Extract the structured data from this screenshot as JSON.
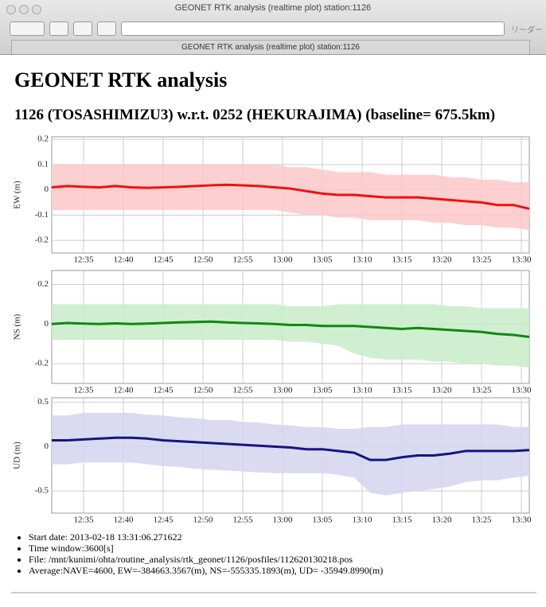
{
  "window": {
    "title": "GEONET RTK analysis (realtime plot) station:1126",
    "tab": "GEONET RTK analysis (realtime plot) station:1126",
    "reader": "リーダー"
  },
  "header": {
    "title": "GEONET RTK analysis",
    "subtitle": "1126 (TOSASHIMIZU3) w.r.t. 0252 (HEKURAJIMA) (baseline= 675.5km)"
  },
  "chart_data": [
    {
      "type": "line",
      "ylabel": "EW (m)",
      "color": "#ee1111",
      "band_color": "#fbc8c8",
      "grid": true,
      "x": [
        "12:31",
        "12:33",
        "12:35",
        "12:37",
        "12:39",
        "12:41",
        "12:43",
        "12:45",
        "12:47",
        "12:49",
        "12:51",
        "12:53",
        "12:55",
        "12:57",
        "12:59",
        "13:01",
        "13:03",
        "13:05",
        "13:07",
        "13:09",
        "13:11",
        "13:13",
        "13:15",
        "13:17",
        "13:19",
        "13:21",
        "13:23",
        "13:25",
        "13:27",
        "13:29",
        "13:31"
      ],
      "values": [
        0.01,
        0.015,
        0.012,
        0.01,
        0.015,
        0.01,
        0.008,
        0.01,
        0.012,
        0.015,
        0.018,
        0.02,
        0.018,
        0.015,
        0.01,
        0.005,
        -0.005,
        -0.015,
        -0.02,
        -0.02,
        -0.025,
        -0.03,
        -0.03,
        -0.03,
        -0.035,
        -0.04,
        -0.045,
        -0.05,
        -0.06,
        -0.06,
        -0.075
      ],
      "upper": [
        0.1,
        0.1,
        0.1,
        0.1,
        0.1,
        0.1,
        0.1,
        0.1,
        0.1,
        0.1,
        0.1,
        0.1,
        0.1,
        0.1,
        0.1,
        0.09,
        0.09,
        0.08,
        0.07,
        0.07,
        0.07,
        0.06,
        0.06,
        0.06,
        0.06,
        0.05,
        0.05,
        0.04,
        0.04,
        0.03,
        0.03
      ],
      "lower": [
        -0.08,
        -0.08,
        -0.08,
        -0.08,
        -0.08,
        -0.08,
        -0.08,
        -0.08,
        -0.08,
        -0.08,
        -0.08,
        -0.08,
        -0.08,
        -0.08,
        -0.08,
        -0.09,
        -0.1,
        -0.1,
        -0.11,
        -0.11,
        -0.12,
        -0.12,
        -0.12,
        -0.12,
        -0.13,
        -0.13,
        -0.14,
        -0.14,
        -0.15,
        -0.15,
        -0.16
      ],
      "xlim": [
        "12:31",
        "13:31"
      ],
      "xticks": [
        "12:35",
        "12:40",
        "12:45",
        "12:50",
        "12:55",
        "13:00",
        "13:05",
        "13:10",
        "13:15",
        "13:20",
        "13:25",
        "13:30"
      ],
      "ylim": [
        -0.25,
        0.21
      ],
      "yticks": [
        -0.2,
        -0.1,
        0,
        0.1,
        0.2
      ]
    },
    {
      "type": "line",
      "ylabel": "NS (m)",
      "color": "#118811",
      "band_color": "#c8ecc8",
      "grid": true,
      "x": [
        "12:31",
        "12:33",
        "12:35",
        "12:37",
        "12:39",
        "12:41",
        "12:43",
        "12:45",
        "12:47",
        "12:49",
        "12:51",
        "12:53",
        "12:55",
        "12:57",
        "12:59",
        "13:01",
        "13:03",
        "13:05",
        "13:07",
        "13:09",
        "13:11",
        "13:13",
        "13:15",
        "13:17",
        "13:19",
        "13:21",
        "13:23",
        "13:25",
        "13:27",
        "13:29",
        "13:31"
      ],
      "values": [
        0,
        0.005,
        0.002,
        0,
        0.003,
        0,
        0.002,
        0.005,
        0.008,
        0.01,
        0.012,
        0.008,
        0.005,
        0.003,
        0,
        -0.005,
        -0.005,
        -0.01,
        -0.01,
        -0.01,
        -0.015,
        -0.02,
        -0.025,
        -0.02,
        -0.025,
        -0.03,
        -0.035,
        -0.04,
        -0.05,
        -0.055,
        -0.065
      ],
      "upper": [
        0.1,
        0.1,
        0.1,
        0.1,
        0.1,
        0.1,
        0.1,
        0.1,
        0.1,
        0.1,
        0.1,
        0.1,
        0.1,
        0.1,
        0.1,
        0.09,
        0.09,
        0.09,
        0.1,
        0.1,
        0.1,
        0.1,
        0.1,
        0.1,
        0.1,
        0.09,
        0.09,
        0.08,
        0.08,
        0.08,
        0.08
      ],
      "lower": [
        -0.08,
        -0.08,
        -0.08,
        -0.08,
        -0.08,
        -0.08,
        -0.08,
        -0.08,
        -0.08,
        -0.08,
        -0.08,
        -0.08,
        -0.08,
        -0.08,
        -0.08,
        -0.09,
        -0.09,
        -0.1,
        -0.11,
        -0.15,
        -0.17,
        -0.18,
        -0.18,
        -0.18,
        -0.19,
        -0.19,
        -0.2,
        -0.2,
        -0.21,
        -0.21,
        -0.22
      ],
      "xlim": [
        "12:31",
        "13:31"
      ],
      "xticks": [
        "12:35",
        "12:40",
        "12:45",
        "12:50",
        "12:55",
        "13:00",
        "13:05",
        "13:10",
        "13:15",
        "13:20",
        "13:25",
        "13:30"
      ],
      "ylim": [
        -0.3,
        0.27
      ],
      "yticks": [
        -0.2,
        0,
        0.2
      ]
    },
    {
      "type": "line",
      "ylabel": "UD (m)",
      "color": "#151580",
      "band_color": "#d4d4ee",
      "grid": true,
      "x": [
        "12:31",
        "12:33",
        "12:35",
        "12:37",
        "12:39",
        "12:41",
        "12:43",
        "12:45",
        "12:47",
        "12:49",
        "12:51",
        "12:53",
        "12:55",
        "12:57",
        "12:59",
        "13:01",
        "13:03",
        "13:05",
        "13:07",
        "13:09",
        "13:11",
        "13:13",
        "13:15",
        "13:17",
        "13:19",
        "13:21",
        "13:23",
        "13:25",
        "13:27",
        "13:29",
        "13:31"
      ],
      "values": [
        0.07,
        0.07,
        0.08,
        0.09,
        0.1,
        0.1,
        0.09,
        0.07,
        0.06,
        0.05,
        0.04,
        0.03,
        0.02,
        0.01,
        0,
        -0.01,
        -0.03,
        -0.03,
        -0.05,
        -0.07,
        -0.15,
        -0.15,
        -0.12,
        -0.1,
        -0.1,
        -0.08,
        -0.05,
        -0.05,
        -0.05,
        -0.05,
        -0.04
      ],
      "upper": [
        0.35,
        0.35,
        0.38,
        0.38,
        0.38,
        0.38,
        0.36,
        0.35,
        0.33,
        0.32,
        0.3,
        0.3,
        0.28,
        0.27,
        0.25,
        0.24,
        0.22,
        0.22,
        0.2,
        0.2,
        0.22,
        0.22,
        0.25,
        0.25,
        0.25,
        0.25,
        0.25,
        0.25,
        0.25,
        0.22,
        0.22
      ],
      "lower": [
        -0.2,
        -0.2,
        -0.18,
        -0.18,
        -0.18,
        -0.18,
        -0.2,
        -0.22,
        -0.23,
        -0.25,
        -0.26,
        -0.27,
        -0.28,
        -0.29,
        -0.3,
        -0.3,
        -0.3,
        -0.3,
        -0.32,
        -0.35,
        -0.52,
        -0.55,
        -0.52,
        -0.5,
        -0.48,
        -0.45,
        -0.4,
        -0.38,
        -0.38,
        -0.35,
        -0.33
      ],
      "xlim": [
        "12:31",
        "13:31"
      ],
      "xticks": [
        "12:35",
        "12:40",
        "12:45",
        "12:50",
        "12:55",
        "13:00",
        "13:05",
        "13:10",
        "13:15",
        "13:20",
        "13:25",
        "13:30"
      ],
      "ylim": [
        -0.75,
        0.55
      ],
      "yticks": [
        -0.5,
        0,
        0.5
      ]
    }
  ],
  "info": [
    "Start date: 2013-02-18 13:31:06.271622",
    "Time window:3600[s]",
    "File: /mnt/kunimi/ohta/routine_analysis/rtk_geonet/1126/posfiles/112620130218.pos",
    "Average:NAVE=4600, EW=-384663.3567(m), NS=-555335.1893(m), UD= -35949.8990(m)"
  ]
}
